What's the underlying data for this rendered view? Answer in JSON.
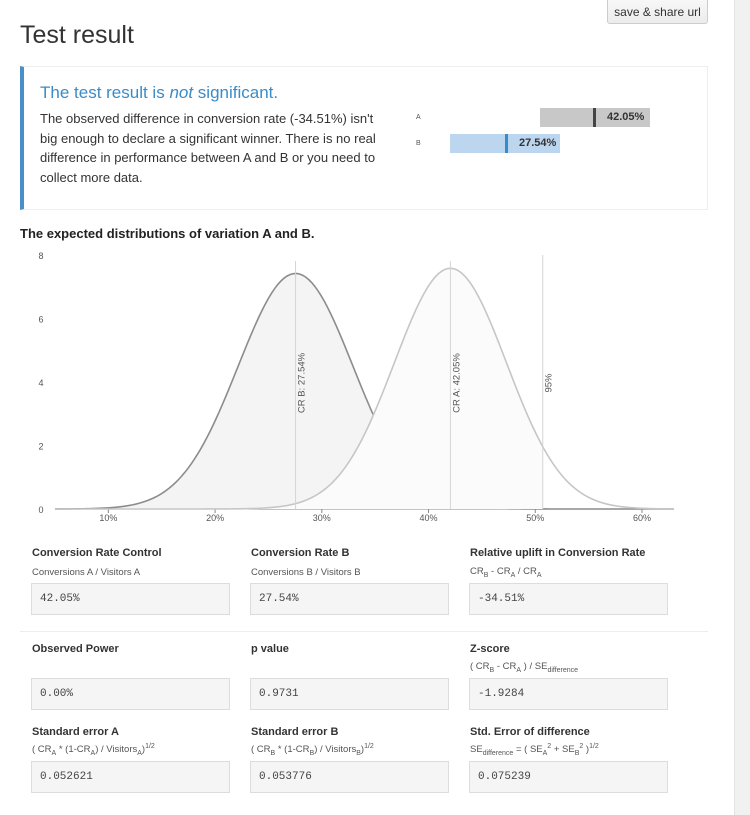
{
  "header": {
    "title": "Test result",
    "share_label": "save & share url"
  },
  "result": {
    "headline_prefix": "The test result is ",
    "headline_em": "not",
    "headline_suffix": " significant.",
    "description": "The observed difference in conversion rate (-34.51%) isn't big enough to declare a significant winner. There is no real difference in performance between A and B or you need to collect more data.",
    "bars": [
      {
        "label": "A",
        "value": 0.4205,
        "value_text": "42.05%"
      },
      {
        "label": "B",
        "value": 0.2754,
        "value_text": "27.54%"
      }
    ]
  },
  "distribution": {
    "title": "The expected distributions of variation A and B.",
    "chart_data": {
      "type": "area",
      "x_ticks": [
        "10%",
        "20%",
        "30%",
        "40%",
        "50%",
        "60%"
      ],
      "x_tick_values": [
        0.1,
        0.2,
        0.3,
        0.4,
        0.5,
        0.6
      ],
      "y_ticks": [
        "0",
        "2",
        "4",
        "6",
        "8"
      ],
      "y_tick_values": [
        0,
        2,
        4,
        6,
        8
      ],
      "xlim": [
        0.05,
        0.63
      ],
      "ylim": [
        0,
        8
      ],
      "series": [
        {
          "mean": 0.2754,
          "sd": 0.053776,
          "color": "#8c8c8c",
          "fill": "#f4f4f4"
        },
        {
          "mean": 0.4205,
          "sd": 0.052621,
          "color": "#c6c6c6",
          "fill": "#fbfbfb"
        }
      ],
      "markers": [
        {
          "x": 0.2754,
          "label": "CR B: 27.54%"
        },
        {
          "x": 0.4205,
          "label": "CR A: 42.05%"
        },
        {
          "x": 0.507,
          "label": "95%"
        }
      ]
    }
  },
  "metrics": {
    "cr_control": {
      "label": "Conversion Rate Control",
      "sub": "Conversions A / Visitors A",
      "value": "42.05%"
    },
    "cr_b": {
      "label": "Conversion Rate B",
      "sub": "Conversions B / Visitors B",
      "value": "27.54%"
    },
    "uplift": {
      "label": "Relative uplift in Conversion Rate",
      "value": "-34.51%"
    },
    "power": {
      "label": "Observed Power",
      "value": "0.00%"
    },
    "pvalue": {
      "label": "p value",
      "value": "0.9731"
    },
    "zscore": {
      "label": "Z-score",
      "value": "-1.9284"
    },
    "se_a": {
      "label": "Standard error A",
      "value": "0.052621"
    },
    "se_b": {
      "label": "Standard error B",
      "value": "0.053776"
    },
    "se_diff": {
      "label": "Std. Error of difference",
      "value": "0.075239"
    }
  }
}
